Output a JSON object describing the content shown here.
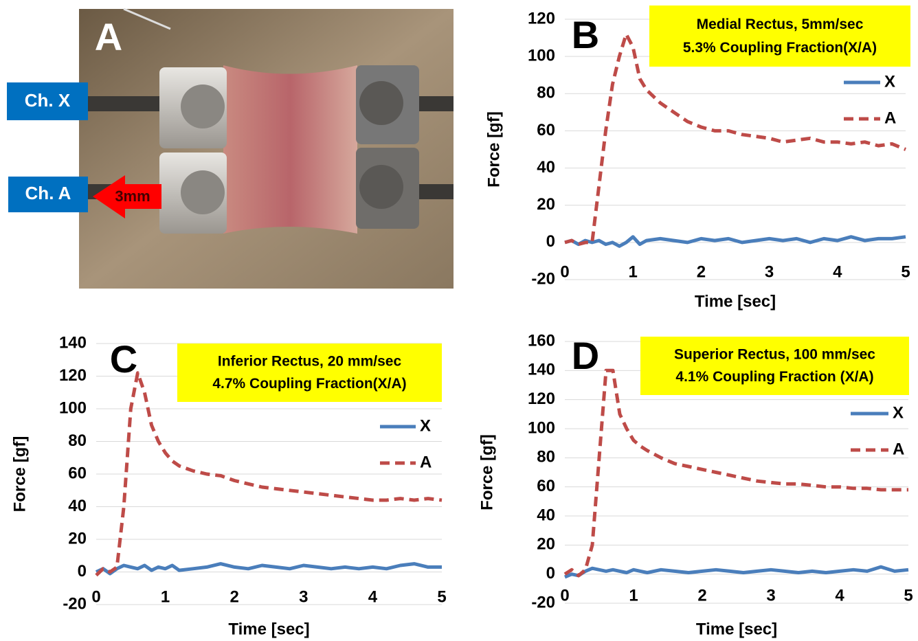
{
  "photo": {
    "panel": "A",
    "channel_x": "Ch. X",
    "channel_a": "Ch. A",
    "displacement": "3mm"
  },
  "chart_data": [
    {
      "type": "line",
      "panel": "B",
      "annotation": [
        "Medial Rectus, 5mm/sec",
        "5.3% Coupling Fraction(X/A)"
      ],
      "x_label": "Time [sec]",
      "y_label": "Force [gf]",
      "grid": true,
      "xlim": [
        0,
        5
      ],
      "xticks": [
        0,
        1,
        2,
        3,
        4,
        5
      ],
      "ylim": [
        -20,
        120
      ],
      "yticks": [
        -20,
        0,
        20,
        40,
        60,
        80,
        100,
        120
      ],
      "x": [
        0,
        0.1,
        0.2,
        0.3,
        0.4,
        0.5,
        0.6,
        0.7,
        0.8,
        0.9,
        1.0,
        1.1,
        1.2,
        1.4,
        1.6,
        1.8,
        2.0,
        2.2,
        2.4,
        2.6,
        2.8,
        3.0,
        3.2,
        3.4,
        3.6,
        3.8,
        4.0,
        4.2,
        4.4,
        4.6,
        4.8,
        5.0
      ],
      "series": [
        {
          "name": "X",
          "color": "#4a7ebb",
          "line_style": "solid",
          "values": [
            0,
            1,
            -1,
            1,
            0,
            1,
            -1,
            0,
            -2,
            0,
            3,
            -1,
            1,
            2,
            1,
            0,
            2,
            1,
            2,
            0,
            1,
            2,
            1,
            2,
            0,
            2,
            1,
            3,
            1,
            2,
            2,
            3
          ]
        },
        {
          "name": "A",
          "color": "#be4b48",
          "line_style": "dashed",
          "values": [
            0,
            1,
            -1,
            0,
            0,
            30,
            60,
            85,
            100,
            112,
            105,
            88,
            82,
            75,
            70,
            65,
            62,
            60,
            60,
            58,
            57,
            56,
            54,
            55,
            56,
            54,
            54,
            53,
            54,
            52,
            53,
            50
          ]
        }
      ]
    },
    {
      "type": "line",
      "panel": "C",
      "annotation": [
        "Inferior Rectus, 20 mm/sec",
        "4.7% Coupling Fraction(X/A)"
      ],
      "x_label": "Time [sec]",
      "y_label": "Force [gf]",
      "grid": true,
      "xlim": [
        0,
        5
      ],
      "xticks": [
        0,
        1,
        2,
        3,
        4,
        5
      ],
      "ylim": [
        -20,
        140
      ],
      "yticks": [
        -20,
        0,
        20,
        40,
        60,
        80,
        100,
        120,
        140
      ],
      "x": [
        0,
        0.1,
        0.2,
        0.3,
        0.4,
        0.5,
        0.6,
        0.7,
        0.8,
        0.9,
        1.0,
        1.1,
        1.2,
        1.4,
        1.6,
        1.8,
        2.0,
        2.2,
        2.4,
        2.6,
        2.8,
        3.0,
        3.2,
        3.4,
        3.6,
        3.8,
        4.0,
        4.2,
        4.4,
        4.6,
        4.8,
        5.0
      ],
      "series": [
        {
          "name": "X",
          "color": "#4a7ebb",
          "line_style": "solid",
          "values": [
            0,
            2,
            -1,
            2,
            4,
            3,
            2,
            4,
            1,
            3,
            2,
            4,
            1,
            2,
            3,
            5,
            3,
            2,
            4,
            3,
            2,
            4,
            3,
            2,
            3,
            2,
            3,
            2,
            4,
            5,
            3,
            3
          ]
        },
        {
          "name": "A",
          "color": "#be4b48",
          "line_style": "dashed",
          "values": [
            -2,
            2,
            0,
            3,
            40,
            100,
            122,
            110,
            90,
            80,
            73,
            68,
            65,
            62,
            60,
            59,
            56,
            54,
            52,
            51,
            50,
            49,
            48,
            47,
            46,
            45,
            44,
            44,
            45,
            44,
            45,
            44
          ]
        }
      ]
    },
    {
      "type": "line",
      "panel": "D",
      "annotation": [
        "Superior Rectus, 100 mm/sec",
        "4.1% Coupling Fraction (X/A)"
      ],
      "x_label": "Time [sec]",
      "y_label": "Force [gf]",
      "grid": true,
      "xlim": [
        0,
        5
      ],
      "xticks": [
        0,
        1,
        2,
        3,
        4,
        5
      ],
      "ylim": [
        -20,
        160
      ],
      "yticks": [
        -20,
        0,
        20,
        40,
        60,
        80,
        100,
        120,
        140,
        160
      ],
      "x": [
        0,
        0.1,
        0.2,
        0.3,
        0.4,
        0.5,
        0.6,
        0.7,
        0.8,
        0.9,
        1.0,
        1.1,
        1.2,
        1.4,
        1.6,
        1.8,
        2.0,
        2.2,
        2.4,
        2.6,
        2.8,
        3.0,
        3.2,
        3.4,
        3.6,
        3.8,
        4.0,
        4.2,
        4.4,
        4.6,
        4.8,
        5.0
      ],
      "series": [
        {
          "name": "X",
          "color": "#4a7ebb",
          "line_style": "solid",
          "values": [
            -2,
            0,
            -1,
            2,
            4,
            3,
            2,
            3,
            2,
            1,
            3,
            2,
            1,
            3,
            2,
            1,
            2,
            3,
            2,
            1,
            2,
            3,
            2,
            1,
            2,
            1,
            2,
            3,
            2,
            5,
            2,
            3
          ]
        },
        {
          "name": "A",
          "color": "#be4b48",
          "line_style": "dashed",
          "values": [
            0,
            3,
            -1,
            3,
            20,
            80,
            140,
            140,
            110,
            100,
            92,
            88,
            85,
            80,
            76,
            74,
            72,
            70,
            68,
            66,
            64,
            63,
            62,
            62,
            61,
            60,
            60,
            59,
            59,
            58,
            58,
            58
          ]
        }
      ]
    }
  ]
}
